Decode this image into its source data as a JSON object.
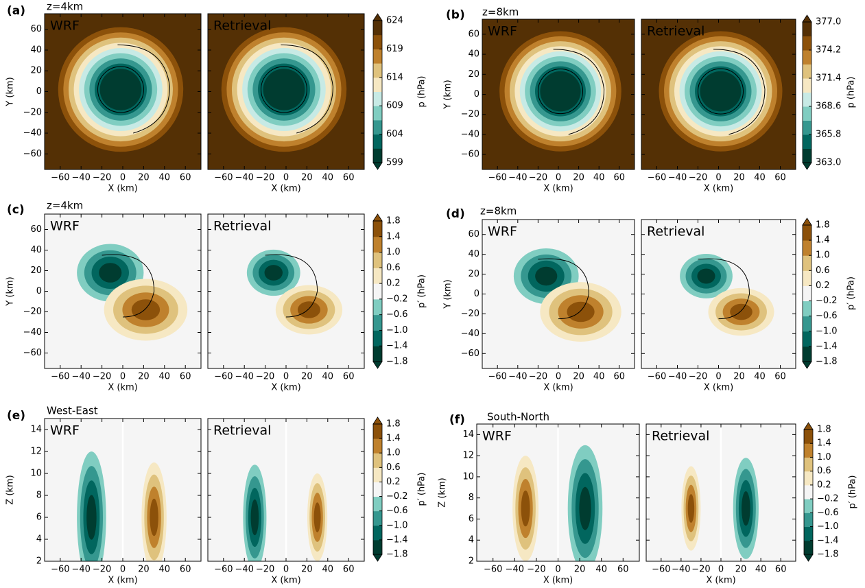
{
  "chart_data": [
    {
      "type": "contour",
      "panel_label": "(a)",
      "subtitle": "z=4km",
      "subplots": [
        {
          "title": "WRF",
          "title_color": "#ffffff"
        },
        {
          "title": "Retrieval",
          "title_color": "#ffffff"
        }
      ],
      "x_label": "X (km)",
      "y_label": "Y (km)",
      "xlim": [
        -75,
        75
      ],
      "xticks": [
        {
          "value": -60,
          "label": "−60"
        },
        {
          "value": -40,
          "label": "−40"
        },
        {
          "value": -20,
          "label": "−20"
        },
        0,
        20,
        40,
        60
      ],
      "ylim": [
        -75,
        75
      ],
      "yticks": [
        {
          "value": -60,
          "label": "−60"
        },
        {
          "value": -40,
          "label": "−40"
        },
        {
          "value": -20,
          "label": "−20"
        },
        0,
        20,
        40,
        60
      ],
      "colorbar": {
        "label": "p (hPa)",
        "ticks": [
          599,
          604,
          609,
          614,
          619,
          624
        ],
        "colors": [
          "#003c30",
          "#01665e",
          "#35978f",
          "#80cdc1",
          "#c7eae5",
          "#f6e8c3",
          "#dfc27d",
          "#bf812d",
          "#8c510a",
          "#543005"
        ]
      }
    },
    {
      "type": "contour",
      "panel_label": "(b)",
      "subtitle": "z=8km",
      "subplots": [
        {
          "title": "WRF",
          "title_color": "#ffffff"
        },
        {
          "title": "Retrieval",
          "title_color": "#ffffff"
        }
      ],
      "x_label": "X (km)",
      "y_label": "Y (km)",
      "xlim": [
        -75,
        75
      ],
      "xticks": [
        {
          "value": -60,
          "label": "−60"
        },
        {
          "value": -40,
          "label": "−40"
        },
        {
          "value": -20,
          "label": "−20"
        },
        0,
        20,
        40,
        60
      ],
      "ylim": [
        -75,
        75
      ],
      "yticks": [
        {
          "value": -60,
          "label": "−60"
        },
        {
          "value": -40,
          "label": "−40"
        },
        {
          "value": -20,
          "label": "−20"
        },
        0,
        20,
        40,
        60
      ],
      "colorbar": {
        "label": "p (hPa)",
        "ticks": [
          {
            "value": 363,
            "label": "363.0"
          },
          365.8,
          368.6,
          371.4,
          374.2,
          {
            "value": 377,
            "label": "377.0"
          }
        ],
        "colors": [
          "#003c30",
          "#01665e",
          "#35978f",
          "#80cdc1",
          "#c7eae5",
          "#f6e8c3",
          "#dfc27d",
          "#bf812d",
          "#8c510a",
          "#543005"
        ]
      }
    },
    {
      "type": "perturbation",
      "panel_label": "(c)",
      "subtitle": "z=4km",
      "subplots": [
        {
          "title": "WRF",
          "title_color": "#000000"
        },
        {
          "title": "Retrieval",
          "title_color": "#000000"
        }
      ],
      "x_label": "X (km)",
      "y_label": "Y (km)",
      "xlim": [
        -75,
        75
      ],
      "xticks": [
        {
          "value": -60,
          "label": "−60"
        },
        {
          "value": -40,
          "label": "−40"
        },
        {
          "value": -20,
          "label": "−20"
        },
        0,
        20,
        40,
        60
      ],
      "ylim": [
        -75,
        75
      ],
      "yticks": [
        {
          "value": -60,
          "label": "−60"
        },
        {
          "value": -40,
          "label": "−40"
        },
        {
          "value": -20,
          "label": "−20"
        },
        0,
        20,
        40,
        60
      ],
      "colorbar": {
        "label": "p′ (hPa)",
        "ticks": [
          {
            "value": -1.8,
            "label": "−1.8"
          },
          {
            "value": -1.4,
            "label": "−1.4"
          },
          {
            "value": -1,
            "label": "−1.0"
          },
          {
            "value": -0.6,
            "label": "−0.6"
          },
          {
            "value": -0.2,
            "label": "−0.2"
          },
          0.2,
          0.6,
          {
            "value": 1,
            "label": "1.0"
          },
          1.4,
          1.8
        ],
        "colors": [
          "#003c30",
          "#01665e",
          "#35978f",
          "#80cdc1",
          "#f5f5f5",
          "#f6e8c3",
          "#dfc27d",
          "#bf812d",
          "#8c510a"
        ]
      }
    },
    {
      "type": "perturbation",
      "panel_label": "(d)",
      "subtitle": "z=8km",
      "subplots": [
        {
          "title": "WRF",
          "title_color": "#000000"
        },
        {
          "title": "Retrieval",
          "title_color": "#000000"
        }
      ],
      "x_label": "X (km)",
      "y_label": "Y (km)",
      "xlim": [
        -75,
        75
      ],
      "xticks": [
        {
          "value": -60,
          "label": "−60"
        },
        {
          "value": -40,
          "label": "−40"
        },
        {
          "value": -20,
          "label": "−20"
        },
        0,
        20,
        40,
        60
      ],
      "ylim": [
        -75,
        75
      ],
      "yticks": [
        {
          "value": -60,
          "label": "−60"
        },
        {
          "value": -40,
          "label": "−40"
        },
        {
          "value": -20,
          "label": "−20"
        },
        0,
        20,
        40,
        60
      ],
      "colorbar": {
        "label": "p′ (hPa)",
        "ticks": [
          {
            "value": -1.8,
            "label": "−1.8"
          },
          {
            "value": -1.4,
            "label": "−1.4"
          },
          {
            "value": -1,
            "label": "−1.0"
          },
          {
            "value": -0.6,
            "label": "−0.6"
          },
          {
            "value": -0.2,
            "label": "−0.2"
          },
          0.2,
          0.6,
          {
            "value": 1,
            "label": "1.0"
          },
          1.4,
          1.8
        ],
        "colors": [
          "#003c30",
          "#01665e",
          "#35978f",
          "#80cdc1",
          "#f5f5f5",
          "#f6e8c3",
          "#dfc27d",
          "#bf812d",
          "#8c510a"
        ]
      }
    },
    {
      "type": "section",
      "panel_label": "(e)",
      "subtitle": "West-East",
      "subplots": [
        {
          "title": "WRF",
          "title_color": "#000000"
        },
        {
          "title": "Retrieval",
          "title_color": "#000000"
        }
      ],
      "x_label": "X (km)",
      "y_label": "Z (km)",
      "xlim": [
        -75,
        75
      ],
      "xticks": [
        {
          "value": -60,
          "label": "−60"
        },
        {
          "value": -40,
          "label": "−40"
        },
        {
          "value": -20,
          "label": "−20"
        },
        0,
        20,
        40,
        60
      ],
      "ylim": [
        2,
        15
      ],
      "yticks": [
        2,
        4,
        6,
        8,
        10,
        12,
        14
      ],
      "colorbar": {
        "label": "p′ (hPa)",
        "ticks": [
          {
            "value": -1.8,
            "label": "−1.8"
          },
          {
            "value": -1.4,
            "label": "−1.4"
          },
          {
            "value": -1,
            "label": "−1.0"
          },
          {
            "value": -0.6,
            "label": "−0.6"
          },
          {
            "value": -0.2,
            "label": "−0.2"
          },
          0.2,
          0.6,
          {
            "value": 1,
            "label": "1.0"
          },
          1.4,
          1.8
        ],
        "colors": [
          "#003c30",
          "#01665e",
          "#35978f",
          "#80cdc1",
          "#f5f5f5",
          "#f6e8c3",
          "#dfc27d",
          "#bf812d",
          "#8c510a"
        ]
      }
    },
    {
      "type": "section",
      "panel_label": "(f)",
      "subtitle": "South-North",
      "subplots": [
        {
          "title": "WRF",
          "title_color": "#000000"
        },
        {
          "title": "Retrieval",
          "title_color": "#000000"
        }
      ],
      "x_label": "X (km)",
      "y_label": "Z (km)",
      "xlim": [
        -75,
        75
      ],
      "xticks": [
        {
          "value": -60,
          "label": "−60"
        },
        {
          "value": -40,
          "label": "−40"
        },
        {
          "value": -20,
          "label": "−20"
        },
        0,
        20,
        40,
        60
      ],
      "ylim": [
        2,
        15
      ],
      "yticks": [
        2,
        4,
        6,
        8,
        10,
        12,
        14
      ],
      "colorbar": {
        "label": "p′ (hPa)",
        "ticks": [
          {
            "value": -1.8,
            "label": "−1.8"
          },
          {
            "value": -1.4,
            "label": "−1.4"
          },
          {
            "value": -1,
            "label": "−1.0"
          },
          {
            "value": -0.6,
            "label": "−0.6"
          },
          {
            "value": -0.2,
            "label": "−0.2"
          },
          0.2,
          0.6,
          {
            "value": 1,
            "label": "1.0"
          },
          1.4,
          1.8
        ],
        "colors": [
          "#003c30",
          "#01665e",
          "#35978f",
          "#80cdc1",
          "#f5f5f5",
          "#f6e8c3",
          "#dfc27d",
          "#bf812d",
          "#8c510a"
        ]
      }
    }
  ]
}
